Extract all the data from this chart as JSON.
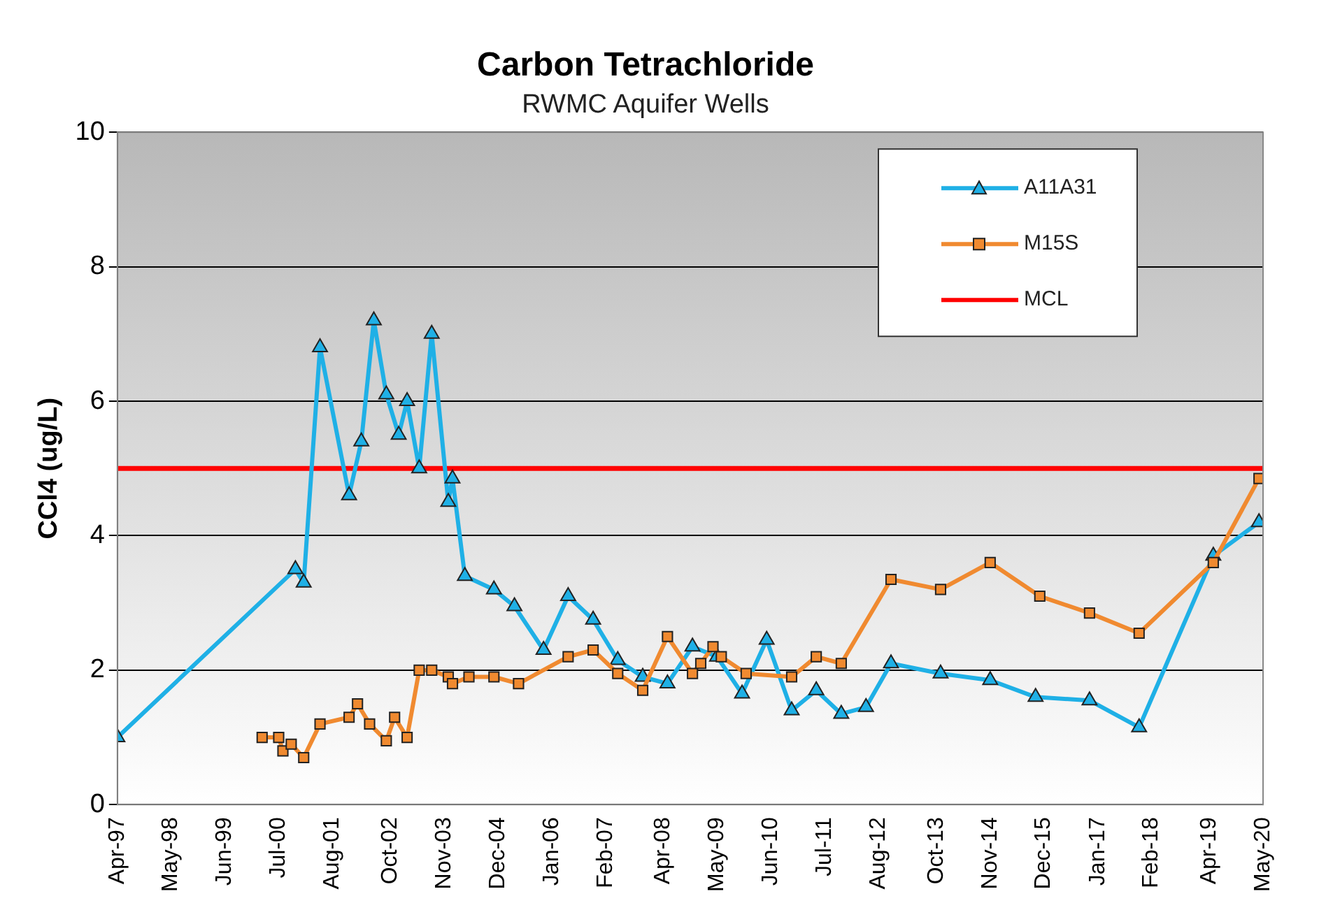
{
  "chart_data": {
    "type": "line",
    "title": "Carbon Tetrachloride",
    "subtitle": "RWMC Aquifer Wells",
    "ylabel": "CCl4 (ug/L)",
    "xlim": [
      "1997-04",
      "2020-05"
    ],
    "xticks": [
      {
        "value": "1997-04",
        "label": "Apr-97"
      },
      {
        "value": "1998-05",
        "label": "May-98"
      },
      {
        "value": "1999-06",
        "label": "Jun-99"
      },
      {
        "value": "2000-07",
        "label": "Jul-00"
      },
      {
        "value": "2001-08",
        "label": "Aug-01"
      },
      {
        "value": "2002-10",
        "label": "Oct-02"
      },
      {
        "value": "2003-11",
        "label": "Nov-03"
      },
      {
        "value": "2004-12",
        "label": "Dec-04"
      },
      {
        "value": "2006-01",
        "label": "Jan-06"
      },
      {
        "value": "2007-02",
        "label": "Feb-07"
      },
      {
        "value": "2008-04",
        "label": "Apr-08"
      },
      {
        "value": "2009-05",
        "label": "May-09"
      },
      {
        "value": "2010-06",
        "label": "Jun-10"
      },
      {
        "value": "2011-07",
        "label": "Jul-11"
      },
      {
        "value": "2012-08",
        "label": "Aug-12"
      },
      {
        "value": "2013-10",
        "label": "Oct-13"
      },
      {
        "value": "2014-11",
        "label": "Nov-14"
      },
      {
        "value": "2015-12",
        "label": "Dec-15"
      },
      {
        "value": "2017-01",
        "label": "Jan-17"
      },
      {
        "value": "2018-02",
        "label": "Feb-18"
      },
      {
        "value": "2019-04",
        "label": "Apr-19"
      },
      {
        "value": "2020-05",
        "label": "May-20"
      }
    ],
    "ylim": [
      0,
      10
    ],
    "yticks": [
      0,
      2,
      4,
      6,
      8,
      10
    ],
    "grid": "y",
    "legend": "top right",
    "line_style": "solid",
    "series": [
      {
        "name": "A11A31",
        "color": "#1fb0e6",
        "marker": "triangle",
        "x": [
          "1997-04",
          "2000-11",
          "2001-01",
          "2001-05",
          "2001-12",
          "2002-03",
          "2002-06",
          "2002-09",
          "2002-12",
          "2003-02",
          "2003-05",
          "2003-08",
          "2003-12",
          "2004-01",
          "2004-04",
          "2004-11",
          "2005-04",
          "2005-11",
          "2006-05",
          "2006-11",
          "2007-05",
          "2007-11",
          "2008-05",
          "2008-11",
          "2009-05",
          "2009-11",
          "2010-05",
          "2010-11",
          "2011-05",
          "2011-11",
          "2012-05",
          "2012-11",
          "2013-11",
          "2014-11",
          "2015-10",
          "2016-11",
          "2017-11",
          "2019-05",
          "2020-04"
        ],
        "values": [
          1.0,
          3.5,
          3.3,
          6.8,
          4.6,
          5.4,
          7.2,
          6.1,
          5.5,
          6.0,
          5.0,
          7.0,
          4.5,
          4.85,
          3.4,
          3.2,
          2.95,
          2.3,
          3.1,
          2.75,
          2.15,
          1.9,
          1.8,
          2.35,
          2.2,
          1.65,
          2.45,
          1.4,
          1.7,
          1.35,
          1.45,
          2.1,
          1.95,
          1.85,
          1.6,
          1.55,
          1.15,
          3.7,
          4.2
        ]
      },
      {
        "name": "M15S",
        "color": "#f08a30",
        "marker": "square",
        "x": [
          "2000-03",
          "2000-07",
          "2000-08",
          "2000-10",
          "2001-01",
          "2001-05",
          "2001-12",
          "2002-02",
          "2002-05",
          "2002-09",
          "2002-11",
          "2003-02",
          "2003-05",
          "2003-08",
          "2003-12",
          "2004-01",
          "2004-05",
          "2004-11",
          "2005-05",
          "2006-05",
          "2006-11",
          "2007-05",
          "2007-11",
          "2008-05",
          "2008-11",
          "2009-01",
          "2009-04",
          "2009-06",
          "2009-12",
          "2010-11",
          "2011-05",
          "2011-11",
          "2012-11",
          "2013-11",
          "2014-11",
          "2015-11",
          "2016-11",
          "2017-11",
          "2019-05",
          "2020-04"
        ],
        "values": [
          1.0,
          1.0,
          0.8,
          0.9,
          0.7,
          1.2,
          1.3,
          1.5,
          1.2,
          0.95,
          1.3,
          1.0,
          2.0,
          2.0,
          1.9,
          1.8,
          1.9,
          1.9,
          1.8,
          2.2,
          2.3,
          1.95,
          1.7,
          2.5,
          1.95,
          2.1,
          2.35,
          2.2,
          1.95,
          1.9,
          2.2,
          2.1,
          3.35,
          3.2,
          3.6,
          3.1,
          2.85,
          2.55,
          3.6,
          4.85
        ]
      }
    ],
    "ref_lines": [
      {
        "axis": "y",
        "value": 5,
        "label": "MCL",
        "color": "#ff0000"
      }
    ]
  }
}
